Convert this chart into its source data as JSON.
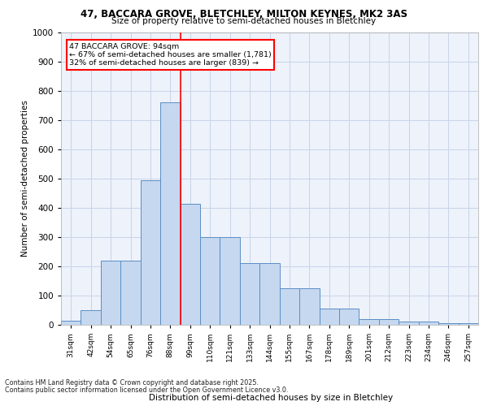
{
  "title_line1": "47, BACCARA GROVE, BLETCHLEY, MILTON KEYNES, MK2 3AS",
  "title_line2": "Size of property relative to semi-detached houses in Bletchley",
  "xlabel": "Distribution of semi-detached houses by size in Bletchley",
  "ylabel": "Number of semi-detached properties",
  "categories": [
    "31sqm",
    "42sqm",
    "54sqm",
    "65sqm",
    "76sqm",
    "88sqm",
    "99sqm",
    "110sqm",
    "121sqm",
    "133sqm",
    "144sqm",
    "155sqm",
    "167sqm",
    "178sqm",
    "189sqm",
    "201sqm",
    "212sqm",
    "223sqm",
    "234sqm",
    "246sqm",
    "257sqm"
  ],
  "bar_values": [
    15,
    50,
    220,
    220,
    495,
    760,
    415,
    300,
    300,
    210,
    210,
    125,
    125,
    55,
    55,
    20,
    20,
    10,
    10,
    5,
    5
  ],
  "bar_color": "#c5d8f0",
  "bar_edge_color": "#5b8ec4",
  "grid_color": "#c8d4e8",
  "background_color": "#edf2fb",
  "vline_x_index": 6,
  "vline_color": "red",
  "annotation_title": "47 BACCARA GROVE: 94sqm",
  "annotation_line1": "← 67% of semi-detached houses are smaller (1,781)",
  "annotation_line2": "32% of semi-detached houses are larger (839) →",
  "annotation_box_color": "white",
  "annotation_box_edge_color": "red",
  "ylim": [
    0,
    1000
  ],
  "yticks": [
    0,
    100,
    200,
    300,
    400,
    500,
    600,
    700,
    800,
    900,
    1000
  ],
  "footer_line1": "Contains HM Land Registry data © Crown copyright and database right 2025.",
  "footer_line2": "Contains public sector information licensed under the Open Government Licence v3.0."
}
